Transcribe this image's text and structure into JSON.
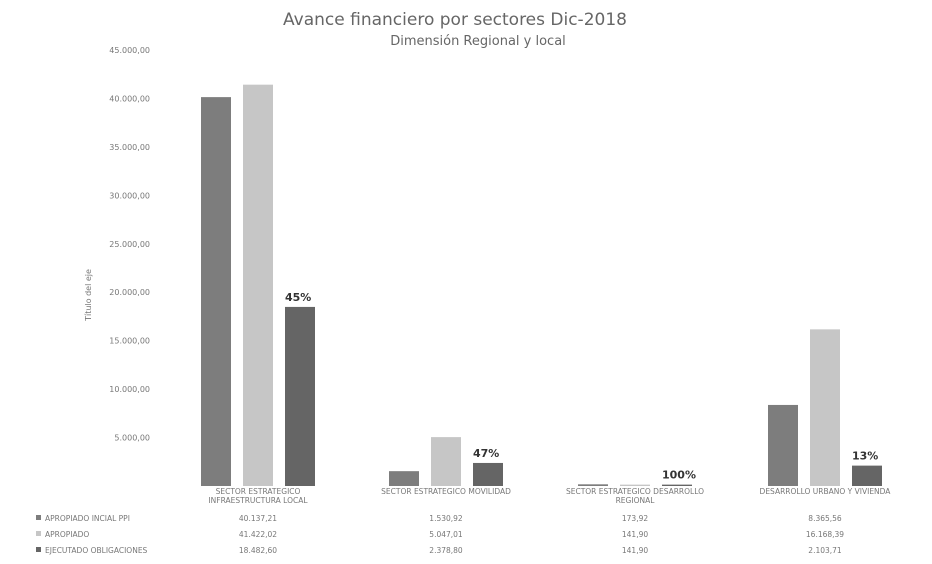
{
  "chart_data": {
    "type": "bar",
    "title": "Avance financiero por sectores Dic-2018",
    "subtitle": "Dimensión Regional y local",
    "ylabel": "Título del eje",
    "ylim": [
      0,
      45000
    ],
    "yticks": [
      "",
      "5.000,00",
      "10.000,00",
      "15.000,00",
      "20.000,00",
      "25.000,00",
      "30.000,00",
      "35.000,00",
      "40.000,00",
      "45.000,00"
    ],
    "grid": false,
    "categories": [
      [
        "SECTOR ESTRATEGICO",
        "INFRAESTRUCTURA LOCAL"
      ],
      [
        "SECTOR ESTRATEGICO MOVILIDAD"
      ],
      [
        "SECTOR ESTRATEGICO DESARROLLO",
        "REGIONAL"
      ],
      [
        "DESARROLLO URBANO Y VIVIENDA"
      ]
    ],
    "series": [
      {
        "name": "APROPIADO INCIAL PPI",
        "color": "#7d7d7d",
        "values": [
          40137.21,
          1530.92,
          173.92,
          8365.56
        ],
        "labels": [
          "40.137,21",
          "1.530,92",
          "173,92",
          "8.365,56"
        ]
      },
      {
        "name": "APROPIADO",
        "color": "#c6c6c6",
        "values": [
          41422.02,
          5047.01,
          141.9,
          16168.39
        ],
        "labels": [
          "41.422,02",
          "5.047,01",
          "141,90",
          "16.168,39"
        ]
      },
      {
        "name": "EJECUTADO OBLIGACIONES",
        "color": "#656565",
        "values": [
          18482.6,
          2378.8,
          141.9,
          2103.71
        ],
        "labels": [
          "18.482,60",
          "2.378,80",
          "141,90",
          "2.103,71"
        ]
      }
    ],
    "annotations": [
      "45%",
      "47%",
      "100%",
      "13%"
    ]
  }
}
